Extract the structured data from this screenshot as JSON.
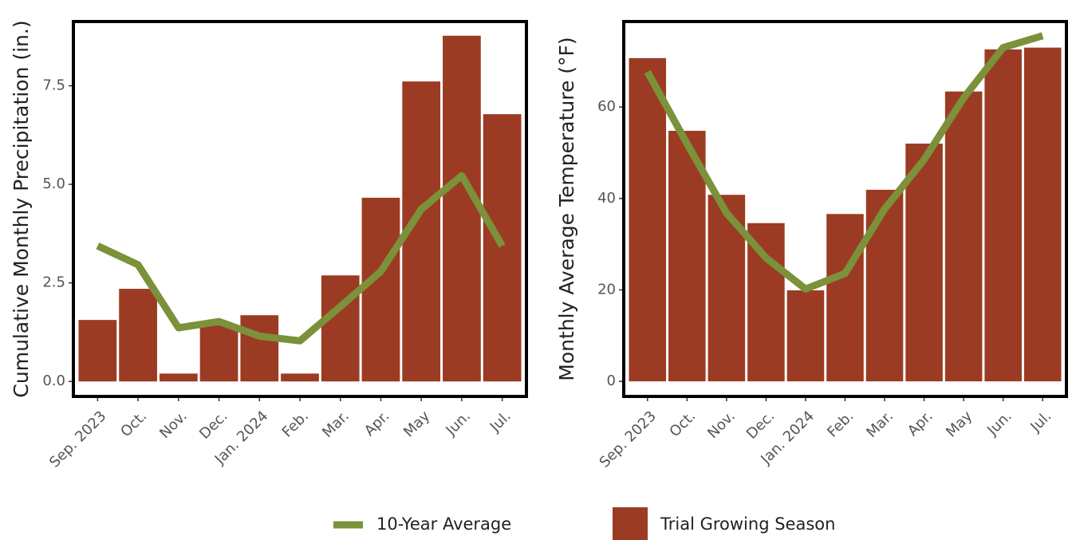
{
  "chart_data": [
    {
      "type": "bar",
      "ylabel": "Cumulative Monthly Precipitation (in.)",
      "categories": [
        "Sep. 2023",
        "Oct.",
        "Nov.",
        "Dec.",
        "Jan. 2024",
        "Feb.",
        "Mar.",
        "Apr.",
        "May",
        "Jun.",
        "Jul."
      ],
      "ylim": [
        -0.38,
        9.13
      ],
      "yticks": [
        {
          "value": 0,
          "label": "0.0"
        },
        2.5,
        {
          "value": 5,
          "label": "5.0"
        },
        7.5
      ],
      "series": [
        {
          "name": "Trial Growing Season",
          "type": "bar",
          "color": "#9c3b23",
          "values": [
            1.56,
            2.35,
            0.2,
            1.42,
            1.68,
            0.2,
            2.69,
            4.66,
            7.61,
            8.77,
            6.78
          ]
        },
        {
          "name": "10-Year Average",
          "type": "line",
          "color": "#7b913a",
          "values": [
            3.44,
            2.96,
            1.36,
            1.52,
            1.15,
            1.03,
            1.9,
            2.79,
            4.37,
            5.22,
            3.44
          ]
        }
      ]
    },
    {
      "type": "bar",
      "ylabel": "Monthly Average Temperature  (°F)",
      "categories": [
        "Sep. 2023",
        "Oct.",
        "Nov.",
        "Dec.",
        "Jan. 2024",
        "Feb.",
        "Mar.",
        "Apr.",
        "May",
        "Jun.",
        "Jul."
      ],
      "ylim": [
        -3.3,
        78.7
      ],
      "yticks": [
        0,
        20,
        40,
        60
      ],
      "series": [
        {
          "type": "bar",
          "color": "#9c3b23",
          "values": [
            70.7,
            54.8,
            40.8,
            34.6,
            19.9,
            36.6,
            41.9,
            52,
            63.4,
            72.6,
            73
          ]
        },
        {
          "type": "line",
          "color": "#7b913a",
          "values": [
            67.7,
            52,
            36.8,
            27,
            20.2,
            23.6,
            37.7,
            48.5,
            62,
            73,
            75.6
          ]
        }
      ]
    }
  ]
}
